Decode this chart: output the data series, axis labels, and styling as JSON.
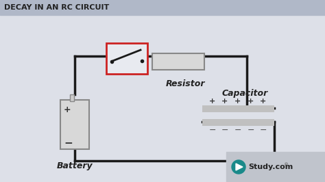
{
  "title": "DECAY IN AN RC CIRCUIT",
  "title_fontsize": 8,
  "bg_color": "#d8dde6",
  "circuit_bg": "#e8eaf0",
  "line_color": "#1a1a1a",
  "line_width": 2.5,
  "switch_box_color": "#cc2222",
  "resistor_box_color": "#cccccc",
  "battery_color": "#cccccc",
  "capacitor_color": "#bbbbbb",
  "plus_color": "#333333",
  "minus_color": "#555555",
  "study_com_bg": "#c8ccd6",
  "label_battery": "Battery",
  "label_resistor": "Resistor",
  "label_capacitor": "Capacitor",
  "label_study": "Study.com"
}
